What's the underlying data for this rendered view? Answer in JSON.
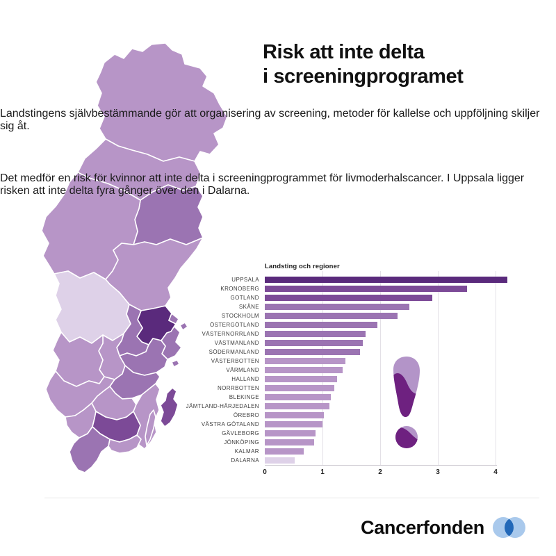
{
  "title": {
    "text": "Risk att inte delta\ni screeningprogramet"
  },
  "paragraphs": {
    "p1": "Landstingens självbestämmande gör att organisering av screening, metoder för kallelse och uppföljning skiljer sig åt.",
    "p2": "Det medför en risk för kvinnor att inte delta i screeningprogrammet för livmoderhalscancer. I Uppsala ligger risken att inte delta fyra gånger över den i Dalarna."
  },
  "chart_data": {
    "type": "bar",
    "orientation": "horizontal",
    "title": "Landsting och regioner",
    "xlabel": "",
    "xlim": [
      0,
      4.75
    ],
    "ticks": [
      0,
      1,
      2,
      3,
      4
    ],
    "grid": true,
    "bars": [
      {
        "label": "UPPSALA",
        "value": 4.2,
        "color": "#5a2a7c"
      },
      {
        "label": "KRONOBERG",
        "value": 3.5,
        "color": "#7c4a97"
      },
      {
        "label": "GOTLAND",
        "value": 2.9,
        "color": "#7c4a97"
      },
      {
        "label": "SKÅNE",
        "value": 2.5,
        "color": "#9b74b2"
      },
      {
        "label": "STOCKHOLM",
        "value": 2.3,
        "color": "#9b74b2"
      },
      {
        "label": "ÖSTERGÖTLAND",
        "value": 1.95,
        "color": "#9b74b2"
      },
      {
        "label": "VÄSTERNORRLAND",
        "value": 1.75,
        "color": "#9b74b2"
      },
      {
        "label": "VÄSTMANLAND",
        "value": 1.7,
        "color": "#9b74b2"
      },
      {
        "label": "SÖDERMANLAND",
        "value": 1.65,
        "color": "#9b74b2"
      },
      {
        "label": "VÄSTERBOTTEN",
        "value": 1.4,
        "color": "#b795c7"
      },
      {
        "label": "VÄRMLAND",
        "value": 1.35,
        "color": "#b795c7"
      },
      {
        "label": "HALLAND",
        "value": 1.25,
        "color": "#b795c7"
      },
      {
        "label": "NORRBOTTEN",
        "value": 1.2,
        "color": "#b795c7"
      },
      {
        "label": "BLEKINGE",
        "value": 1.15,
        "color": "#b795c7"
      },
      {
        "label": "JÄMTLAND-HÄRJEDALEN",
        "value": 1.12,
        "color": "#b795c7"
      },
      {
        "label": "ÖREBRO",
        "value": 1.02,
        "color": "#b795c7"
      },
      {
        "label": "VÄSTRA GÖTALAND",
        "value": 1.0,
        "color": "#b795c7"
      },
      {
        "label": "GÄVLEBORG",
        "value": 0.88,
        "color": "#b795c7"
      },
      {
        "label": "JÖNKÖPING",
        "value": 0.86,
        "color": "#b795c7"
      },
      {
        "label": "KALMAR",
        "value": 0.68,
        "color": "#b795c7"
      },
      {
        "label": "DALARNA",
        "value": 0.52,
        "color": "#ded1e8"
      }
    ]
  },
  "palette": {
    "tier1": "#5a2a7c",
    "tier2": "#7c4a97",
    "tier3": "#9b74b2",
    "tier4": "#b795c7",
    "tier5": "#ded1e8"
  },
  "map": {
    "regions": {
      "norrbotten": "#b795c7",
      "vasterbotten": "#b795c7",
      "vasternorrland": "#9b74b2",
      "jamtland": "#b795c7",
      "gavleborg": "#b795c7",
      "dalarna": "#ded1e8",
      "uppsala": "#5a2a7c",
      "stockholm": "#9b74b2",
      "vastmanland": "#9b74b2",
      "sodermanland": "#9b74b2",
      "orebro": "#b795c7",
      "varmland": "#b795c7",
      "vastra-gotaland": "#b795c7",
      "ostergotland": "#9b74b2",
      "jonkoping": "#b795c7",
      "kalmar": "#b795c7",
      "oland": "#b795c7",
      "halland": "#b795c7",
      "kronoberg": "#7c4a97",
      "blekinge": "#b795c7",
      "skane": "#9b74b2",
      "gotland": "#7c4a97"
    }
  },
  "exclamation": {
    "light": "#b394c8",
    "dark": "#6e2180"
  },
  "footer": {
    "brand": "Cancerfonden",
    "circle_light": "#a9c9ec",
    "circle_dark": "#2268b8"
  }
}
